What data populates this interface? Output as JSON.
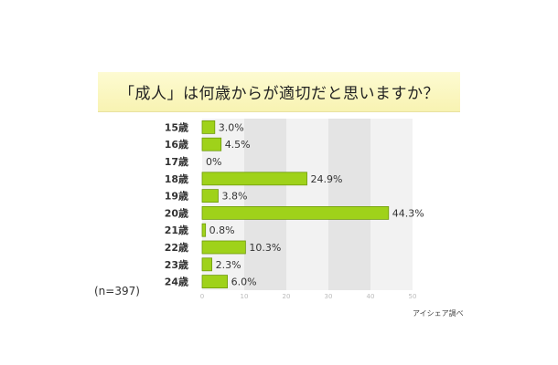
{
  "title": "「成人」は何歳からが適切だと思いますか？",
  "sample_note": "(n=397)",
  "source_note": "アイシェア調べ",
  "colors": {
    "bar_fill": "#9fd21a",
    "bar_stroke": "#6e9a0c",
    "band_light": "#f2f2f2",
    "band_dark": "#e4e4e4",
    "axis_text": "#bbbbbb"
  },
  "chart_data": {
    "type": "bar",
    "orientation": "horizontal",
    "title": "「成人」は何歳からが適切だと思いますか？",
    "categories": [
      "15歳",
      "16歳",
      "17歳",
      "18歳",
      "19歳",
      "20歳",
      "21歳",
      "22歳",
      "23歳",
      "24歳"
    ],
    "values": [
      3.0,
      4.5,
      0,
      24.9,
      3.8,
      44.3,
      0.8,
      10.3,
      2.3,
      6.0
    ],
    "value_labels": [
      "3.0%",
      "4.5%",
      "0%",
      "24.9%",
      "3.8%",
      "44.3%",
      "0.8%",
      "10.3%",
      "2.3%",
      "6.0%"
    ],
    "xlim": [
      0,
      50
    ],
    "xticks": [
      "0",
      "10",
      "20",
      "30",
      "40",
      "50"
    ],
    "xlabel": "",
    "ylabel": "",
    "unit": "%"
  }
}
